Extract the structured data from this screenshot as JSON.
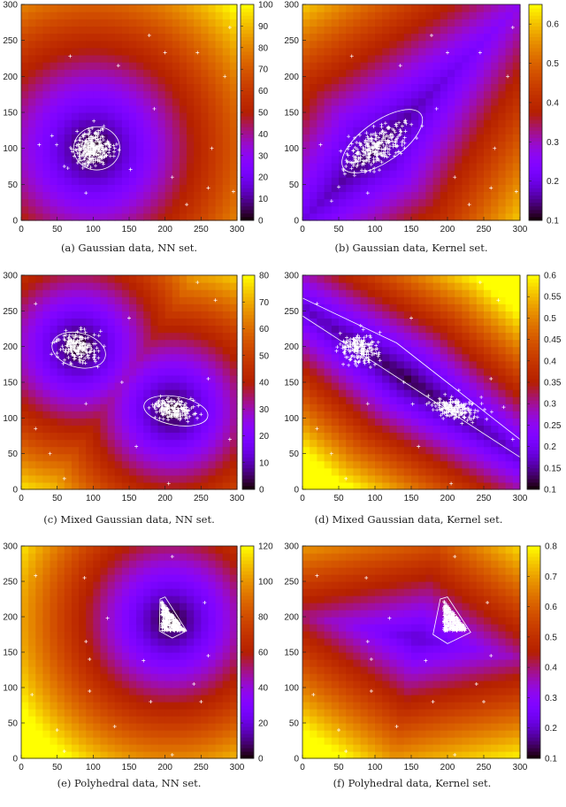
{
  "chart_data": [
    {
      "id": "a",
      "type": "heatmap",
      "caption": "(a) Gaussian data, NN set.",
      "xlim": [
        0,
        300
      ],
      "ylim": [
        0,
        300
      ],
      "xticks": [
        0,
        50,
        100,
        150,
        200,
        250,
        300
      ],
      "yticks": [
        0,
        50,
        100,
        150,
        200,
        250,
        300
      ],
      "colorbar": {
        "range": [
          0,
          100
        ],
        "ticks": [
          "0",
          "10",
          "20",
          "30",
          "40",
          "50",
          "60",
          "70",
          "80",
          "90",
          "100"
        ]
      },
      "field": {
        "kind": "nn",
        "centers": [
          [
            100,
            100
          ]
        ],
        "scale": 0.36,
        "offset": 0
      },
      "clusters": [
        {
          "cx": 100,
          "cy": 100,
          "sx": 14,
          "sy": 12,
          "rot": 0,
          "n": 300
        }
      ],
      "outliers": [
        [
          178,
          257
        ],
        [
          200,
          233
        ],
        [
          245,
          233
        ],
        [
          68,
          228
        ],
        [
          135,
          215
        ],
        [
          290,
          268
        ],
        [
          283,
          200
        ],
        [
          185,
          155
        ],
        [
          25,
          105
        ],
        [
          60,
          75
        ],
        [
          90,
          38
        ],
        [
          265,
          100
        ],
        [
          260,
          45
        ],
        [
          210,
          60
        ],
        [
          230,
          22
        ],
        [
          295,
          40
        ]
      ],
      "contours": [
        {
          "type": "ellipse",
          "cx": 105,
          "cy": 100,
          "rx": 32,
          "ry": 30,
          "rot": 0
        }
      ]
    },
    {
      "id": "b",
      "type": "heatmap",
      "caption": "(b) Gaussian data, Kernel set.",
      "xlim": [
        0,
        300
      ],
      "ylim": [
        0,
        300
      ],
      "xticks": [
        0,
        50,
        100,
        150,
        200,
        250,
        300
      ],
      "yticks": [
        0,
        50,
        100,
        150,
        200,
        250,
        300
      ],
      "colorbar": {
        "range": [
          0.1,
          0.65
        ],
        "ticks": [
          "0.1",
          "0.2",
          "0.3",
          "0.4",
          "0.5",
          "0.6"
        ]
      },
      "field": {
        "kind": "line",
        "p": [
          100,
          100
        ],
        "dir": [
          1,
          1
        ],
        "a": 0.13,
        "b": 0.0021,
        "c": 0.0005
      },
      "clusters": [
        {
          "cx": 100,
          "cy": 100,
          "sx": 24,
          "sy": 11,
          "rot": 35,
          "n": 300
        }
      ],
      "outliers": [
        [
          178,
          257
        ],
        [
          200,
          233
        ],
        [
          245,
          233
        ],
        [
          68,
          228
        ],
        [
          135,
          215
        ],
        [
          290,
          268
        ],
        [
          283,
          200
        ],
        [
          185,
          155
        ],
        [
          25,
          105
        ],
        [
          60,
          75
        ],
        [
          90,
          38
        ],
        [
          265,
          100
        ],
        [
          260,
          45
        ],
        [
          210,
          60
        ],
        [
          230,
          22
        ],
        [
          295,
          40
        ]
      ],
      "contours": [
        {
          "type": "ellipse",
          "cx": 110,
          "cy": 110,
          "rx": 65,
          "ry": 28,
          "rot": 35
        }
      ]
    },
    {
      "id": "c",
      "type": "heatmap",
      "caption": "(c) Mixed Gaussian data, NN set.",
      "xlim": [
        0,
        300
      ],
      "ylim": [
        0,
        300
      ],
      "xticks": [
        0,
        50,
        100,
        150,
        200,
        250,
        300
      ],
      "yticks": [
        0,
        50,
        100,
        150,
        200,
        250,
        300
      ],
      "colorbar": {
        "range": [
          0,
          80
        ],
        "ticks": [
          "0",
          "10",
          "20",
          "30",
          "40",
          "50",
          "60",
          "70",
          "80"
        ]
      },
      "field": {
        "kind": "nn",
        "centers": [
          [
            80,
            200
          ],
          [
            210,
            112
          ]
        ],
        "scale": 0.36,
        "offset": 0
      },
      "clusters": [
        {
          "cx": 78,
          "cy": 198,
          "sx": 14,
          "sy": 10,
          "rot": -15,
          "n": 200
        },
        {
          "cx": 212,
          "cy": 112,
          "sx": 16,
          "sy": 7,
          "rot": -10,
          "n": 200
        }
      ],
      "outliers": [
        [
          20,
          260
        ],
        [
          245,
          290
        ],
        [
          270,
          265
        ],
        [
          150,
          240
        ],
        [
          140,
          150
        ],
        [
          260,
          155
        ],
        [
          90,
          120
        ],
        [
          20,
          85
        ],
        [
          40,
          50
        ],
        [
          60,
          15
        ],
        [
          160,
          60
        ],
        [
          205,
          8
        ],
        [
          290,
          70
        ]
      ],
      "contours": [
        {
          "type": "ellipse",
          "cx": 80,
          "cy": 195,
          "rx": 38,
          "ry": 24,
          "rot": -15
        },
        {
          "type": "ellipse",
          "cx": 215,
          "cy": 110,
          "rx": 45,
          "ry": 20,
          "rot": -10
        }
      ]
    },
    {
      "id": "d",
      "type": "heatmap",
      "caption": "(d) Mixed Gaussian data, Kernel set.",
      "xlim": [
        0,
        300
      ],
      "ylim": [
        0,
        300
      ],
      "xticks": [
        0,
        50,
        100,
        150,
        200,
        250,
        300
      ],
      "yticks": [
        0,
        50,
        100,
        150,
        200,
        250,
        300
      ],
      "colorbar": {
        "range": [
          0.1,
          0.6
        ],
        "ticks": [
          "0.1",
          "0.15",
          "0.2",
          "0.25",
          "0.3",
          "0.35",
          "0.4",
          "0.45",
          "0.5",
          "0.55",
          "0.6"
        ]
      },
      "field": {
        "kind": "line",
        "p": [
          145,
          155
        ],
        "dir": [
          130,
          -90
        ],
        "a": 0.12,
        "b": 0.0028,
        "c": 0.0003
      },
      "clusters": [
        {
          "cx": 78,
          "cy": 198,
          "sx": 14,
          "sy": 10,
          "rot": -15,
          "n": 200
        },
        {
          "cx": 212,
          "cy": 112,
          "sx": 16,
          "sy": 7,
          "rot": -10,
          "n": 200
        }
      ],
      "outliers": [
        [
          20,
          260
        ],
        [
          245,
          290
        ],
        [
          270,
          265
        ],
        [
          150,
          240
        ],
        [
          140,
          150
        ],
        [
          260,
          155
        ],
        [
          90,
          120
        ],
        [
          20,
          85
        ],
        [
          40,
          50
        ],
        [
          60,
          15
        ],
        [
          160,
          60
        ],
        [
          205,
          8
        ],
        [
          290,
          70
        ]
      ],
      "contours": [
        {
          "type": "poly",
          "pts": [
            [
              0,
              268
            ],
            [
              130,
              205
            ],
            [
              300,
              70
            ],
            [
              300,
              45
            ],
            [
              0,
              243
            ]
          ]
        }
      ]
    },
    {
      "id": "e",
      "type": "heatmap",
      "caption": "(e) Polyhedral data, NN set.",
      "xlim": [
        0,
        300
      ],
      "ylim": [
        0,
        300
      ],
      "xticks": [
        0,
        50,
        100,
        150,
        200,
        250,
        300
      ],
      "yticks": [
        0,
        50,
        100,
        150,
        200,
        250,
        300
      ],
      "colorbar": {
        "range": [
          0,
          120
        ],
        "ticks": [
          "0",
          "20",
          "40",
          "60",
          "80",
          "100",
          "120"
        ]
      },
      "field": {
        "kind": "nn",
        "centers": [
          [
            208,
            195
          ]
        ],
        "scale": 0.5,
        "offset": 0
      },
      "clusters": [
        {
          "cx": 205,
          "cy": 195,
          "sx": 8,
          "sy": 11,
          "rot": 0,
          "n": 300,
          "triangle": [
            [
              195,
              222
            ],
            [
              195,
              180
            ],
            [
              228,
              180
            ]
          ]
        }
      ],
      "outliers": [
        [
          20,
          258
        ],
        [
          88,
          255
        ],
        [
          210,
          285
        ],
        [
          255,
          220
        ],
        [
          120,
          198
        ],
        [
          90,
          165
        ],
        [
          95,
          140
        ],
        [
          170,
          138
        ],
        [
          260,
          145
        ],
        [
          240,
          105
        ],
        [
          15,
          90
        ],
        [
          95,
          95
        ],
        [
          180,
          80
        ],
        [
          250,
          80
        ],
        [
          50,
          40
        ],
        [
          130,
          45
        ],
        [
          60,
          10
        ],
        [
          210,
          5
        ]
      ],
      "contours": [
        {
          "type": "poly",
          "pts": [
            [
              193,
              225
            ],
            [
              192,
              180
            ],
            [
              210,
              170
            ],
            [
              230,
              180
            ],
            [
              200,
              228
            ]
          ]
        }
      ]
    },
    {
      "id": "f",
      "type": "heatmap",
      "caption": "(f) Polyhedral data, Kernel set.",
      "xlim": [
        0,
        300
      ],
      "ylim": [
        0,
        300
      ],
      "xticks": [
        0,
        50,
        100,
        150,
        200,
        250,
        300
      ],
      "yticks": [
        0,
        50,
        100,
        150,
        200,
        250,
        300
      ],
      "colorbar": {
        "range": [
          0.1,
          0.8
        ],
        "ticks": [
          "0.1",
          "0.2",
          "0.3",
          "0.4",
          "0.5",
          "0.6",
          "0.7",
          "0.8"
        ]
      },
      "field": {
        "kind": "line",
        "p": [
          160,
          170
        ],
        "dir": [
          1,
          -0.2
        ],
        "a": 0.2,
        "b": 0.0028,
        "c": 0.0012
      },
      "clusters": [
        {
          "cx": 205,
          "cy": 195,
          "sx": 8,
          "sy": 11,
          "rot": 0,
          "n": 300,
          "triangle": [
            [
              195,
              222
            ],
            [
              195,
              180
            ],
            [
              228,
              180
            ]
          ]
        }
      ],
      "outliers": [
        [
          20,
          258
        ],
        [
          88,
          255
        ],
        [
          210,
          285
        ],
        [
          255,
          220
        ],
        [
          120,
          198
        ],
        [
          90,
          165
        ],
        [
          95,
          140
        ],
        [
          170,
          138
        ],
        [
          260,
          145
        ],
        [
          240,
          105
        ],
        [
          15,
          90
        ],
        [
          95,
          95
        ],
        [
          180,
          80
        ],
        [
          250,
          80
        ],
        [
          50,
          40
        ],
        [
          130,
          45
        ],
        [
          60,
          10
        ],
        [
          210,
          5
        ]
      ],
      "contours": [
        {
          "type": "poly",
          "pts": [
            [
              190,
              225
            ],
            [
              180,
              175
            ],
            [
              200,
              162
            ],
            [
              232,
              178
            ],
            [
              200,
              228
            ]
          ]
        }
      ]
    }
  ]
}
